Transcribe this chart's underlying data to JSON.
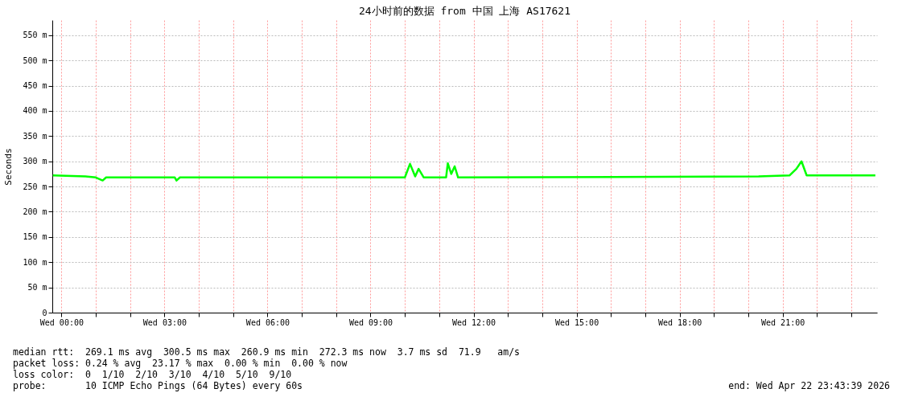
{
  "chart_data": {
    "type": "line",
    "title": "24小时前的数据 from 中国 上海 AS17621",
    "ylabel": "Seconds",
    "x": [
      "2026-04-21T23:45",
      "2026-04-22T00:42",
      "2026-04-22T01:00",
      "2026-04-22T01:12",
      "2026-04-22T01:18",
      "2026-04-22T03:18",
      "2026-04-22T03:21",
      "2026-04-22T03:27",
      "2026-04-22T10:00",
      "2026-04-22T10:09",
      "2026-04-22T10:18",
      "2026-04-22T10:24",
      "2026-04-22T10:33",
      "2026-04-22T11:12",
      "2026-04-22T11:15",
      "2026-04-22T11:21",
      "2026-04-22T11:27",
      "2026-04-22T11:33",
      "2026-04-22T20:18",
      "2026-04-22T21:12",
      "2026-04-22T21:24",
      "2026-04-22T21:33",
      "2026-04-22T21:42",
      "2026-04-22T23:42"
    ],
    "series": [
      {
        "color": "#00ff00",
        "values": [
          272,
          270,
          268,
          262,
          268,
          268,
          262,
          268,
          268,
          295,
          270,
          285,
          268,
          268,
          296,
          275,
          290,
          268,
          270,
          272,
          285,
          300,
          272,
          272
        ]
      }
    ],
    "xlim": [
      "2026-04-21T23:44",
      "2026-04-22T23:45"
    ],
    "xticks": [
      {
        "value": "2026-04-22T00:00",
        "label": "Wed 00:00"
      },
      {
        "value": "2026-04-22T01:00",
        "label": null
      },
      {
        "value": "2026-04-22T02:00",
        "label": null
      },
      {
        "value": "2026-04-22T03:00",
        "label": "Wed 03:00"
      },
      {
        "value": "2026-04-22T04:00",
        "label": null
      },
      {
        "value": "2026-04-22T05:00",
        "label": null
      },
      {
        "value": "2026-04-22T06:00",
        "label": "Wed 06:00"
      },
      {
        "value": "2026-04-22T07:00",
        "label": null
      },
      {
        "value": "2026-04-22T08:00",
        "label": null
      },
      {
        "value": "2026-04-22T09:00",
        "label": "Wed 09:00"
      },
      {
        "value": "2026-04-22T10:00",
        "label": null
      },
      {
        "value": "2026-04-22T11:00",
        "label": null
      },
      {
        "value": "2026-04-22T12:00",
        "label": "Wed 12:00"
      },
      {
        "value": "2026-04-22T13:00",
        "label": null
      },
      {
        "value": "2026-04-22T14:00",
        "label": null
      },
      {
        "value": "2026-04-22T15:00",
        "label": "Wed 15:00"
      },
      {
        "value": "2026-04-22T16:00",
        "label": null
      },
      {
        "value": "2026-04-22T17:00",
        "label": null
      },
      {
        "value": "2026-04-22T18:00",
        "label": "Wed 18:00"
      },
      {
        "value": "2026-04-22T19:00",
        "label": null
      },
      {
        "value": "2026-04-22T20:00",
        "label": null
      },
      {
        "value": "2026-04-22T21:00",
        "label": "Wed 21:00"
      },
      {
        "value": "2026-04-22T22:00",
        "label": null
      },
      {
        "value": "2026-04-22T23:00",
        "label": null
      }
    ],
    "ylim": [
      0,
      580
    ],
    "yticks": [
      0,
      {
        "value": 50,
        "label": "50 m"
      },
      {
        "value": 100,
        "label": "100 m"
      },
      {
        "value": 150,
        "label": "150 m"
      },
      {
        "value": 200,
        "label": "200 m"
      },
      {
        "value": 250,
        "label": "250 m"
      },
      {
        "value": 300,
        "label": "300 m"
      },
      {
        "value": 350,
        "label": "350 m"
      },
      {
        "value": 400,
        "label": "400 m"
      },
      {
        "value": 450,
        "label": "450 m"
      },
      {
        "value": 500,
        "label": "500 m"
      },
      {
        "value": 550,
        "label": "550 m"
      }
    ],
    "grid": true,
    "annotations": [
      "median rtt:  269.1 ms avg  300.5 ms max  260.9 ms min  272.3 ms now  3.7 ms sd  71.9   am/s",
      "packet loss: 0.24 % avg  23.17 % max  0.00 % min  0.00 % now",
      "loss color:  0  1/10  2/10  3/10  4/10  5/10  9/10",
      "probe:       10 ICMP Echo Pings (64 Bytes) every 60s",
      "end: Wed Apr 22 23:43:39 2026"
    ]
  }
}
